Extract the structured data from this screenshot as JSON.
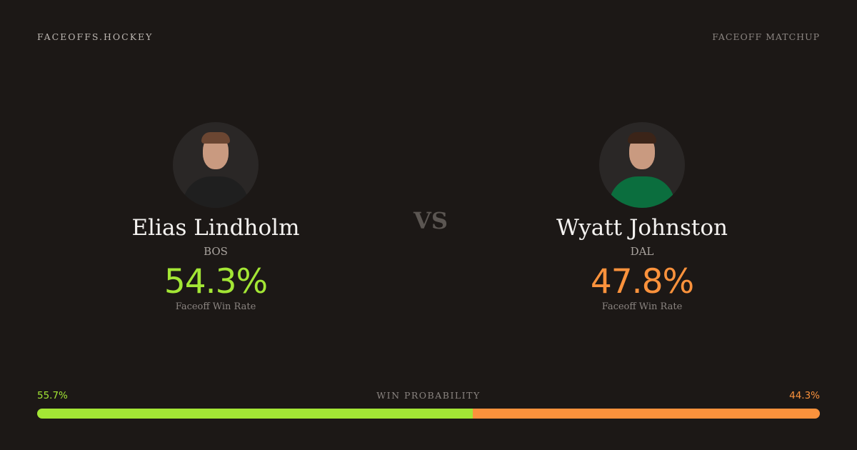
{
  "header": {
    "brand": "FACEOFFS.HOCKEY",
    "tag": "FACEOFF MATCHUP"
  },
  "vs": "VS",
  "players": [
    {
      "name": "Elias Lindholm",
      "team": "BOS",
      "rate": "54.3%",
      "rate_label": "Faceoff Win Rate",
      "color": "#a3e635",
      "jersey": "#1f1f1f"
    },
    {
      "name": "Wyatt Johnston",
      "team": "DAL",
      "rate": "47.8%",
      "rate_label": "Faceoff Win Rate",
      "color": "#fb923c",
      "jersey": "#0b6e3e"
    }
  ],
  "win_probability": {
    "label": "WIN PROBABILITY",
    "left": "55.7%",
    "right": "44.3%",
    "left_value": 55.7,
    "right_value": 44.3
  }
}
